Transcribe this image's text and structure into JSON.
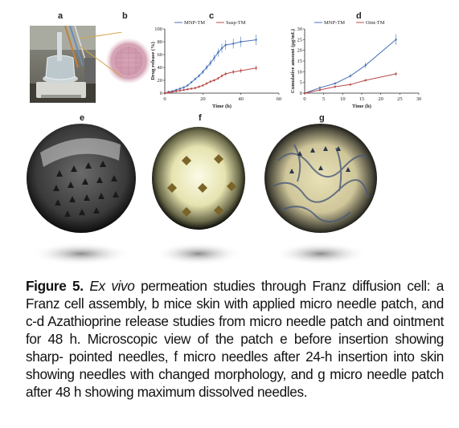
{
  "panels": {
    "a": "a",
    "b": "b",
    "c": "c",
    "d": "d",
    "e": "e",
    "f": "f",
    "g": "g"
  },
  "chart_data": [
    {
      "type": "line",
      "panel": "c",
      "xlabel": "Time (h)",
      "ylabel": "Drug release (%)",
      "xlim": [
        0,
        60
      ],
      "ylim": [
        0,
        100
      ],
      "xticks": [
        "0",
        "20",
        "40",
        "60"
      ],
      "yticks": [
        "0",
        "20",
        "40",
        "60",
        "80",
        "100"
      ],
      "legend_position": "top",
      "series": [
        {
          "name": "MNP-TM",
          "color": "#4a72b8",
          "x": [
            0,
            2,
            4,
            6,
            8,
            10,
            12,
            14,
            16,
            18,
            20,
            22,
            24,
            26,
            28,
            30,
            32,
            36,
            40,
            48
          ],
          "y": [
            0,
            2,
            3,
            5,
            7,
            9,
            12,
            17,
            22,
            27,
            33,
            40,
            47,
            55,
            63,
            70,
            75,
            77,
            80,
            83
          ]
        },
        {
          "name": "Susp-TM",
          "color": "#b84a4a",
          "x": [
            0,
            2,
            4,
            6,
            8,
            10,
            12,
            14,
            16,
            18,
            20,
            22,
            24,
            26,
            28,
            30,
            32,
            36,
            40,
            48
          ],
          "y": [
            0,
            1,
            2,
            3,
            4,
            5,
            6,
            7,
            8,
            10,
            12,
            15,
            18,
            20,
            23,
            27,
            30,
            33,
            35,
            39
          ]
        }
      ]
    },
    {
      "type": "line",
      "panel": "d",
      "xlabel": "Time (h)",
      "ylabel": "Cumulative amount (μg/mL)",
      "xlim": [
        0,
        30
      ],
      "ylim": [
        0,
        30
      ],
      "xticks": [
        "0",
        "5",
        "10",
        "15",
        "20",
        "25",
        "30"
      ],
      "yticks": [
        "0",
        "5",
        "10",
        "15",
        "20",
        "25",
        "30"
      ],
      "legend_position": "top",
      "series": [
        {
          "name": "MNP-TM",
          "color": "#4a72b8",
          "x": [
            0,
            4,
            8,
            12,
            16,
            24
          ],
          "y": [
            0,
            2.5,
            4.5,
            8,
            13,
            25
          ]
        },
        {
          "name": "Oint-TM",
          "color": "#b84a4a",
          "x": [
            0,
            4,
            8,
            12,
            16,
            24
          ],
          "y": [
            0,
            1.5,
            3,
            4,
            6,
            9
          ]
        }
      ]
    }
  ],
  "caption": {
    "fig_label": "Figure 5.",
    "italic": "Ex vivo",
    "text": " permeation studies through Franz diffusion cell: a Franz cell assembly, b mice skin with applied micro needle patch, and c-d Azathioprine release studies from micro needle patch and ointment for 48 h. Microscopic view of the patch e before insertion showing sharp- pointed needles, f micro needles after 24-h insertion into skin showing needles with changed morphology, and g micro needle patch after 48 h showing maximum dissolved needles."
  }
}
